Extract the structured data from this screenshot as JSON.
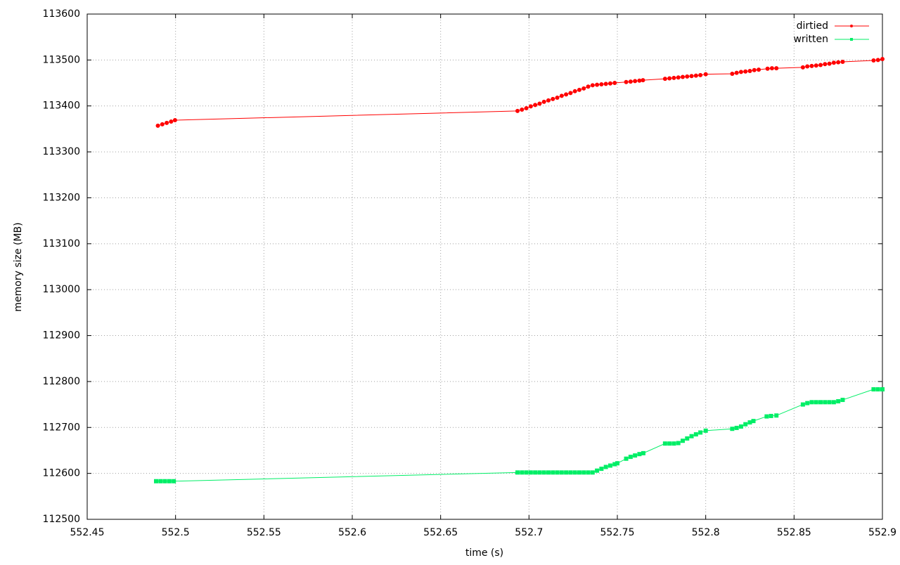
{
  "chart_data": {
    "type": "line",
    "xlabel": "time (s)",
    "ylabel": "memory size (MB)",
    "xlim": [
      552.45,
      552.9
    ],
    "ylim": [
      112500,
      113600
    ],
    "xticks": [
      552.45,
      552.5,
      552.55,
      552.6,
      552.65,
      552.7,
      552.75,
      552.8,
      552.85,
      552.9
    ],
    "yticks": [
      112500,
      112600,
      112700,
      112800,
      112900,
      113000,
      113100,
      113200,
      113300,
      113400,
      113500,
      113600
    ],
    "grid": true,
    "legend": "top-right",
    "series": [
      {
        "name": "dirtied",
        "color": "#ff0000",
        "marker": "circle",
        "x": [
          552.49,
          552.4925,
          552.495,
          552.4975,
          552.4997,
          552.6935,
          552.696,
          552.6985,
          552.701,
          552.7035,
          552.706,
          552.7085,
          552.711,
          552.7135,
          552.716,
          552.7185,
          552.721,
          552.7235,
          552.726,
          552.7285,
          552.731,
          552.7335,
          552.736,
          552.7385,
          552.741,
          552.7435,
          552.746,
          552.7485,
          552.755,
          552.7575,
          552.76,
          552.7625,
          552.7645,
          552.777,
          552.7795,
          552.782,
          552.7845,
          552.787,
          552.7895,
          552.792,
          552.7945,
          552.797,
          552.8,
          552.815,
          552.8175,
          552.82,
          552.8225,
          552.825,
          552.8275,
          552.83,
          552.835,
          552.8375,
          552.84,
          552.855,
          552.8575,
          552.86,
          552.8625,
          552.865,
          552.8675,
          552.87,
          552.8725,
          552.875,
          552.8775,
          552.895,
          552.8975,
          552.9
        ],
        "values": [
          113357,
          113360,
          113363,
          113366,
          113369,
          113389,
          113392,
          113395,
          113399,
          113402,
          113405,
          113409,
          113412,
          113415,
          113418,
          113422,
          113425,
          113428,
          113432,
          113435,
          113438,
          113442,
          113445,
          113446,
          113447,
          113448,
          113449,
          113450,
          113452,
          113453,
          113454,
          113455,
          113456,
          113459,
          113460,
          113461,
          113462,
          113463,
          113464,
          113465,
          113466,
          113467,
          113469,
          113470,
          113472,
          113474,
          113475,
          113476,
          113478,
          113479,
          113481,
          113482,
          113482,
          113484,
          113486,
          113487,
          113488,
          113489,
          113491,
          113492,
          113494,
          113495,
          113496,
          113499,
          113500,
          113502
        ]
      },
      {
        "name": "written",
        "color": "#00ee66",
        "marker": "square",
        "x": [
          552.489,
          552.4915,
          552.494,
          552.4965,
          552.499,
          552.6935,
          552.696,
          552.6985,
          552.701,
          552.7035,
          552.706,
          552.7085,
          552.711,
          552.7135,
          552.716,
          552.7185,
          552.721,
          552.7235,
          552.726,
          552.7285,
          552.731,
          552.7335,
          552.736,
          552.7385,
          552.741,
          552.7435,
          552.746,
          552.7485,
          552.75,
          552.755,
          552.7575,
          552.76,
          552.7625,
          552.7647,
          552.777,
          552.7795,
          552.782,
          552.7845,
          552.787,
          552.7895,
          552.792,
          552.7945,
          552.797,
          552.8,
          552.815,
          552.8175,
          552.82,
          552.8225,
          552.825,
          552.827,
          552.8345,
          552.837,
          552.84,
          552.855,
          552.8575,
          552.86,
          552.8625,
          552.865,
          552.8675,
          552.87,
          552.8725,
          552.875,
          552.8775,
          552.895,
          552.8975,
          552.9
        ],
        "values": [
          112583,
          112583,
          112583,
          112583,
          112583,
          112602,
          112602,
          112602,
          112602,
          112602,
          112602,
          112602,
          112602,
          112602,
          112602,
          112602,
          112602,
          112602,
          112602,
          112602,
          112602,
          112602,
          112602,
          112606,
          112610,
          112614,
          112617,
          112620,
          112622,
          112632,
          112636,
          112639,
          112642,
          112644,
          112665,
          112665,
          112665,
          112666,
          112671,
          112676,
          112681,
          112685,
          112689,
          112693,
          112697,
          112699,
          112702,
          112707,
          112711,
          112714,
          112724,
          112725,
          112726,
          112750,
          112753,
          112755,
          112755,
          112755,
          112755,
          112755,
          112755,
          112757,
          112760,
          112783,
          112783,
          112783
        ]
      }
    ]
  }
}
